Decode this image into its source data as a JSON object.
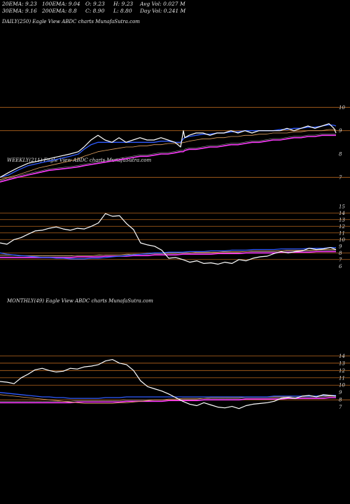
{
  "header": {
    "ema20": "20EMA: 9.23",
    "ema100": "100EMA: 9.04",
    "open": "O: 9.23",
    "high": "H: 9.23",
    "avg_vol": "Avg Vol: 0.027 M",
    "ema30": "30EMA: 9.16",
    "ema200": "200EMA: 8.8",
    "close": "C: 8.90",
    "low": "L: 8.80",
    "day_vol": "Day Vol: 0.241 M"
  },
  "colors": {
    "background": "#000000",
    "price": "#ffffff",
    "ema_short": "#2f5bff",
    "ema_long": "#ff3cff",
    "ema_mid": "#e0a060",
    "grid": "#b5651d"
  },
  "chart_data": [
    {
      "type": "line",
      "title": "DAILY(250) Eagle  View  ABDC charts MunafaSutra.com",
      "ylim": [
        6.5,
        10.4
      ],
      "yticks": [
        "10",
        "9",
        "8",
        "7"
      ],
      "gridlines": [
        10,
        9,
        7
      ],
      "x": [
        0,
        12,
        25,
        40,
        55,
        70,
        85,
        100,
        112,
        120,
        130,
        140,
        150,
        160,
        170,
        180,
        190,
        200,
        210,
        220,
        230,
        240,
        250,
        258,
        262,
        264,
        270,
        280,
        290,
        300,
        310,
        320,
        330,
        340,
        350,
        360,
        370,
        380,
        390,
        400,
        410,
        420,
        430,
        440,
        450,
        460,
        470,
        477,
        480
      ],
      "series": [
        {
          "values": [
            7.0,
            7.2,
            7.4,
            7.6,
            7.7,
            7.8,
            7.9,
            8.0,
            8.1,
            8.3,
            8.6,
            8.8,
            8.6,
            8.5,
            8.7,
            8.5,
            8.6,
            8.7,
            8.6,
            8.6,
            8.7,
            8.6,
            8.5,
            8.3,
            9.0,
            8.7,
            8.8,
            8.9,
            8.9,
            8.8,
            8.9,
            8.9,
            9.0,
            8.9,
            9.0,
            8.9,
            9.0,
            9.0,
            9.0,
            9.0,
            9.1,
            9.0,
            9.1,
            9.2,
            9.1,
            9.2,
            9.3,
            9.1,
            8.9
          ]
        },
        {
          "values": [
            7.0,
            7.1,
            7.3,
            7.5,
            7.6,
            7.7,
            7.8,
            7.9,
            8.0,
            8.2,
            8.4,
            8.5,
            8.5,
            8.5,
            8.5,
            8.5,
            8.5,
            8.5,
            8.5,
            8.5,
            8.55,
            8.55,
            8.5,
            8.5,
            8.65,
            8.7,
            8.75,
            8.8,
            8.85,
            8.85,
            8.9,
            8.9,
            8.95,
            8.95,
            9.0,
            9.0,
            9.0,
            9.0,
            9.0,
            9.05,
            9.05,
            9.1,
            9.1,
            9.15,
            9.15,
            9.2,
            9.25,
            9.23,
            9.2
          ]
        },
        {
          "values": [
            6.9,
            7.0,
            7.1,
            7.25,
            7.4,
            7.5,
            7.6,
            7.7,
            7.8,
            7.9,
            8.0,
            8.1,
            8.15,
            8.2,
            8.25,
            8.3,
            8.3,
            8.35,
            8.35,
            8.4,
            8.4,
            8.45,
            8.45,
            8.45,
            8.5,
            8.5,
            8.55,
            8.6,
            8.65,
            8.65,
            8.7,
            8.7,
            8.75,
            8.75,
            8.8,
            8.8,
            8.85,
            8.85,
            8.9,
            8.9,
            8.9,
            8.95,
            8.95,
            9.0,
            9.0,
            9.0,
            9.05,
            9.05,
            9.04
          ]
        },
        {
          "values": [
            6.8,
            6.9,
            7.0,
            7.1,
            7.2,
            7.3,
            7.35,
            7.4,
            7.45,
            7.5,
            7.55,
            7.6,
            7.65,
            7.7,
            7.75,
            7.8,
            7.85,
            7.9,
            7.9,
            7.95,
            8.0,
            8.0,
            8.05,
            8.1,
            8.1,
            8.15,
            8.2,
            8.2,
            8.25,
            8.3,
            8.3,
            8.35,
            8.4,
            8.4,
            8.45,
            8.5,
            8.5,
            8.55,
            8.6,
            8.6,
            8.65,
            8.7,
            8.7,
            8.75,
            8.75,
            8.8,
            8.8,
            8.8,
            8.8
          ]
        }
      ]
    },
    {
      "type": "line",
      "title": "WEEKLY(211) Eagle  View  ABDC charts MunafaSutra.com",
      "ylim": [
        5.5,
        15.5
      ],
      "yticks": [
        "15",
        "14",
        "13",
        "12",
        "11",
        "10",
        "9",
        "8",
        "7",
        "6"
      ],
      "gridlines": [
        14,
        13,
        12,
        11,
        10,
        8,
        7
      ],
      "x": [
        0,
        10,
        20,
        30,
        40,
        50,
        60,
        70,
        80,
        90,
        100,
        110,
        120,
        130,
        140,
        150,
        160,
        170,
        180,
        190,
        200,
        210,
        220,
        230,
        240,
        250,
        260,
        270,
        280,
        290,
        300,
        310,
        320,
        330,
        340,
        350,
        360,
        370,
        380,
        390,
        400,
        410,
        420,
        430,
        440,
        450,
        460,
        470,
        478
      ],
      "series": [
        {
          "values": [
            9.5,
            9.3,
            10.0,
            10.3,
            10.8,
            11.3,
            11.4,
            11.7,
            11.9,
            11.6,
            11.4,
            11.7,
            11.6,
            12.0,
            12.5,
            13.9,
            13.5,
            13.6,
            12.4,
            11.5,
            9.5,
            9.2,
            9.0,
            8.4,
            7.2,
            7.3,
            7.0,
            6.6,
            6.8,
            6.4,
            6.5,
            6.3,
            6.6,
            6.4,
            7.0,
            6.8,
            7.2,
            7.4,
            7.5,
            7.9,
            8.2,
            8.0,
            8.2,
            8.3,
            8.7,
            8.5,
            8.6,
            8.8,
            8.5
          ]
        },
        {
          "values": [
            8.0,
            7.8,
            7.7,
            7.6,
            7.5,
            7.4,
            7.3,
            7.3,
            7.2,
            7.2,
            7.1,
            7.1,
            7.1,
            7.2,
            7.2,
            7.3,
            7.4,
            7.5,
            7.6,
            7.7,
            7.8,
            7.9,
            8.0,
            8.0,
            8.1,
            8.1,
            8.1,
            8.2,
            8.2,
            8.2,
            8.3,
            8.3,
            8.3,
            8.4,
            8.4,
            8.4,
            8.5,
            8.5,
            8.5,
            8.5,
            8.6,
            8.6,
            8.6,
            8.6,
            8.7,
            8.7,
            8.7,
            8.8,
            8.8
          ]
        },
        {
          "values": [
            7.7,
            7.7,
            7.7,
            7.6,
            7.6,
            7.6,
            7.6,
            7.6,
            7.6,
            7.6,
            7.6,
            7.6,
            7.6,
            7.6,
            7.7,
            7.7,
            7.7,
            7.7,
            7.8,
            7.8,
            7.8,
            7.9,
            7.9,
            7.9,
            8.0,
            8.0,
            8.0,
            8.0,
            8.1,
            8.1,
            8.1,
            8.1,
            8.2,
            8.2,
            8.2,
            8.2,
            8.3,
            8.3,
            8.3,
            8.3,
            8.3,
            8.4,
            8.4,
            8.4,
            8.4,
            8.4,
            8.5,
            8.5,
            8.5
          ]
        },
        {
          "values": [
            7.3,
            7.3,
            7.3,
            7.3,
            7.3,
            7.3,
            7.3,
            7.3,
            7.3,
            7.3,
            7.3,
            7.4,
            7.4,
            7.4,
            7.4,
            7.5,
            7.5,
            7.5,
            7.5,
            7.6,
            7.6,
            7.6,
            7.7,
            7.7,
            7.7,
            7.7,
            7.8,
            7.8,
            7.8,
            7.8,
            7.8,
            7.9,
            7.9,
            7.9,
            7.9,
            8.0,
            8.0,
            8.0,
            8.0,
            8.0,
            8.1,
            8.1,
            8.1,
            8.1,
            8.1,
            8.2,
            8.2,
            8.2,
            8.2
          ]
        }
      ]
    },
    {
      "type": "line",
      "title": "MONTHLY(49) Eagle  View  ABDC charts MunafaSutra.com",
      "ylim": [
        6.2,
        14.8
      ],
      "yticks": [
        "14",
        "13",
        "12",
        "11",
        "10",
        "9",
        "8",
        "7"
      ],
      "gridlines": [
        14,
        13,
        12,
        11,
        10,
        8
      ],
      "x": [
        0,
        10,
        20,
        30,
        40,
        50,
        60,
        70,
        80,
        90,
        100,
        110,
        120,
        130,
        140,
        150,
        160,
        170,
        180,
        190,
        200,
        210,
        220,
        230,
        240,
        250,
        260,
        270,
        280,
        290,
        300,
        310,
        320,
        330,
        340,
        350,
        360,
        370,
        380,
        390,
        400,
        410,
        420,
        430,
        440,
        450,
        460,
        470,
        478
      ],
      "series": [
        {
          "values": [
            10.5,
            10.4,
            10.2,
            11.0,
            11.5,
            12.1,
            12.3,
            12.0,
            11.8,
            11.9,
            12.3,
            12.2,
            12.5,
            12.6,
            12.8,
            13.3,
            13.5,
            13.0,
            12.8,
            12.0,
            10.6,
            9.8,
            9.5,
            9.2,
            8.8,
            8.3,
            7.8,
            7.4,
            7.2,
            7.6,
            7.3,
            7.0,
            6.9,
            7.1,
            6.8,
            7.2,
            7.4,
            7.5,
            7.6,
            7.8,
            8.2,
            8.3,
            8.2,
            8.5,
            8.6,
            8.4,
            8.7,
            8.6,
            8.5
          ]
        },
        {
          "values": [
            9.0,
            8.9,
            8.8,
            8.7,
            8.6,
            8.5,
            8.4,
            8.4,
            8.3,
            8.3,
            8.2,
            8.2,
            8.2,
            8.2,
            8.2,
            8.3,
            8.3,
            8.3,
            8.4,
            8.4,
            8.4,
            8.4,
            8.4,
            8.4,
            8.4,
            8.4,
            8.4,
            8.4,
            8.4,
            8.4,
            8.4,
            8.4,
            8.4,
            8.4,
            8.4,
            8.4,
            8.4,
            8.4,
            8.4,
            8.5,
            8.5,
            8.5,
            8.5,
            8.5,
            8.5,
            8.5,
            8.6,
            8.6,
            8.6
          ]
        },
        {
          "values": [
            8.7,
            8.6,
            8.5,
            8.4,
            8.3,
            8.2,
            8.1,
            8.0,
            7.9,
            7.8,
            7.7,
            7.6,
            7.5,
            7.5,
            7.5,
            7.5,
            7.5,
            7.6,
            7.6,
            7.7,
            7.8,
            7.9,
            8.0,
            8.0,
            8.1,
            8.1,
            8.2,
            8.2,
            8.2,
            8.2,
            8.3,
            8.3,
            8.3,
            8.3,
            8.3,
            8.4,
            8.4,
            8.4,
            8.4,
            8.4,
            8.4,
            8.4,
            8.5,
            8.5,
            8.5,
            8.5,
            8.5,
            8.5,
            8.5
          ]
        },
        {
          "values": [
            7.6,
            7.6,
            7.6,
            7.6,
            7.6,
            7.6,
            7.6,
            7.6,
            7.6,
            7.6,
            7.6,
            7.7,
            7.7,
            7.7,
            7.7,
            7.7,
            7.7,
            7.7,
            7.8,
            7.8,
            7.8,
            7.8,
            7.8,
            7.8,
            7.9,
            7.9,
            7.9,
            7.9,
            7.9,
            8.0,
            8.0,
            8.0,
            8.0,
            8.0,
            8.0,
            8.1,
            8.1,
            8.1,
            8.1,
            8.1,
            8.1,
            8.2,
            8.2,
            8.2,
            8.2,
            8.2,
            8.2,
            8.3,
            8.3
          ]
        }
      ]
    }
  ]
}
